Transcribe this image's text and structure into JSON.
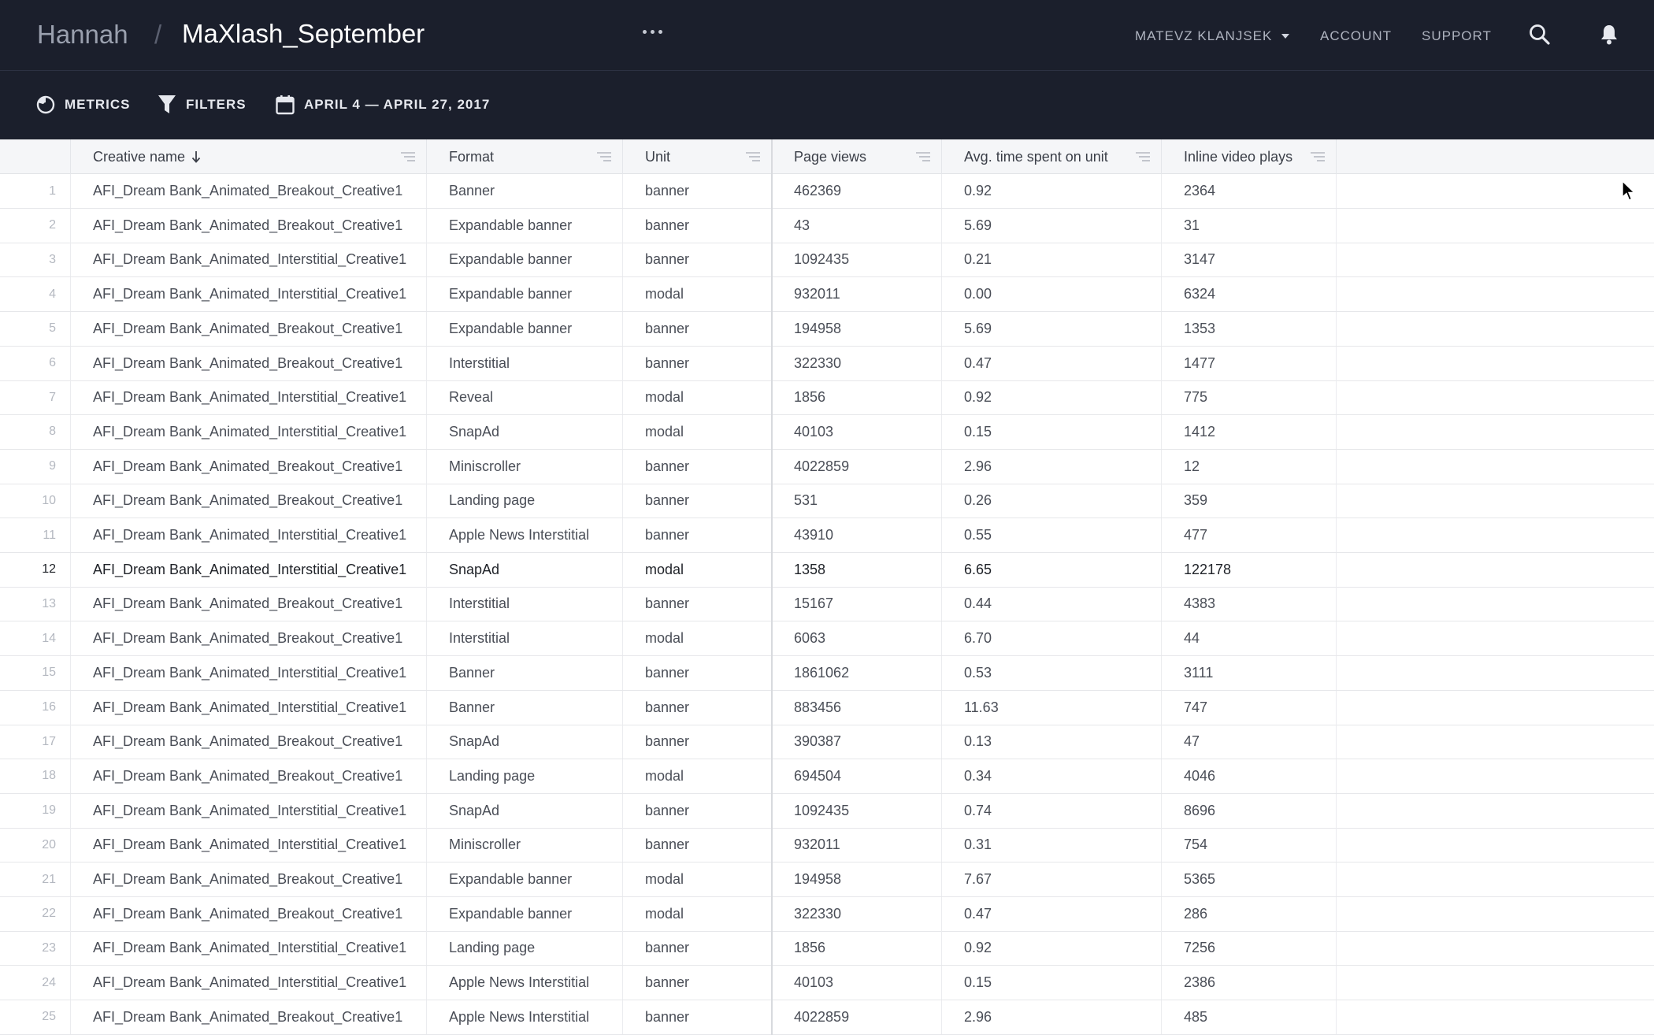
{
  "header": {
    "breadcrumb_root": "Hannah",
    "breadcrumb_separator": "/",
    "breadcrumb_current": "MaXlash_September",
    "user_name": "MATEVZ KLANJSEK",
    "account_label": "ACCOUNT",
    "support_label": "SUPPORT",
    "more_icon": "ellipsis-icon",
    "search_icon": "search-icon",
    "notification_icon": "bell-icon"
  },
  "toolbar": {
    "metrics_label": "METRICS",
    "filters_label": "FILTERS",
    "date_range_label": "APRIL 4 — APRIL 27, 2017"
  },
  "table": {
    "columns": [
      {
        "label": "Creative name",
        "sorted": "descending"
      },
      {
        "label": "Format"
      },
      {
        "label": "Unit"
      },
      {
        "label": "Page views"
      },
      {
        "label": "Avg. time spent on unit"
      },
      {
        "label": "Inline video plays"
      }
    ],
    "highlighted_row": 12,
    "rows": [
      {
        "index": "1",
        "creative": "AFI_Dream Bank_Animated_Breakout_Creative1",
        "format": "Banner",
        "unit": "banner",
        "page_views": "462369",
        "avg_time": "0.92",
        "video_plays": "2364"
      },
      {
        "index": "2",
        "creative": "AFI_Dream Bank_Animated_Breakout_Creative1",
        "format": "Expandable banner",
        "unit": "banner",
        "page_views": "43",
        "avg_time": "5.69",
        "video_plays": "31"
      },
      {
        "index": "3",
        "creative": "AFI_Dream Bank_Animated_Interstitial_Creative1",
        "format": "Expandable banner",
        "unit": "banner",
        "page_views": "1092435",
        "avg_time": "0.21",
        "video_plays": "3147"
      },
      {
        "index": "4",
        "creative": "AFI_Dream Bank_Animated_Interstitial_Creative1",
        "format": "Expandable banner",
        "unit": "modal",
        "page_views": "932011",
        "avg_time": "0.00",
        "video_plays": "6324"
      },
      {
        "index": "5",
        "creative": "AFI_Dream Bank_Animated_Breakout_Creative1",
        "format": "Expandable banner",
        "unit": "banner",
        "page_views": "194958",
        "avg_time": "5.69",
        "video_plays": "1353"
      },
      {
        "index": "6",
        "creative": "AFI_Dream Bank_Animated_Breakout_Creative1",
        "format": "Interstitial",
        "unit": "banner",
        "page_views": "322330",
        "avg_time": "0.47",
        "video_plays": "1477"
      },
      {
        "index": "7",
        "creative": "AFI_Dream Bank_Animated_Interstitial_Creative1",
        "format": "Reveal",
        "unit": "modal",
        "page_views": "1856",
        "avg_time": "0.92",
        "video_plays": "775"
      },
      {
        "index": "8",
        "creative": "AFI_Dream Bank_Animated_Interstitial_Creative1",
        "format": "SnapAd",
        "unit": "modal",
        "page_views": "40103",
        "avg_time": "0.15",
        "video_plays": "1412"
      },
      {
        "index": "9",
        "creative": "AFI_Dream Bank_Animated_Breakout_Creative1",
        "format": "Miniscroller",
        "unit": "banner",
        "page_views": "4022859",
        "avg_time": "2.96",
        "video_plays": "12"
      },
      {
        "index": "10",
        "creative": "AFI_Dream Bank_Animated_Breakout_Creative1",
        "format": "Landing page",
        "unit": "banner",
        "page_views": "531",
        "avg_time": "0.26",
        "video_plays": "359"
      },
      {
        "index": "11",
        "creative": "AFI_Dream Bank_Animated_Interstitial_Creative1",
        "format": "Apple News Interstitial",
        "unit": "banner",
        "page_views": "43910",
        "avg_time": "0.55",
        "video_plays": "477"
      },
      {
        "index": "12",
        "creative": "AFI_Dream Bank_Animated_Interstitial_Creative1",
        "format": "SnapAd",
        "unit": "modal",
        "page_views": "1358",
        "avg_time": "6.65",
        "video_plays": "122178"
      },
      {
        "index": "13",
        "creative": "AFI_Dream Bank_Animated_Breakout_Creative1",
        "format": "Interstitial",
        "unit": "banner",
        "page_views": "15167",
        "avg_time": "0.44",
        "video_plays": "4383"
      },
      {
        "index": "14",
        "creative": "AFI_Dream Bank_Animated_Breakout_Creative1",
        "format": "Interstitial",
        "unit": "modal",
        "page_views": "6063",
        "avg_time": "6.70",
        "video_plays": "44"
      },
      {
        "index": "15",
        "creative": "AFI_Dream Bank_Animated_Interstitial_Creative1",
        "format": "Banner",
        "unit": "banner",
        "page_views": "1861062",
        "avg_time": "0.53",
        "video_plays": "3111"
      },
      {
        "index": "16",
        "creative": "AFI_Dream Bank_Animated_Interstitial_Creative1",
        "format": "Banner",
        "unit": "banner",
        "page_views": "883456",
        "avg_time": "11.63",
        "video_plays": "747"
      },
      {
        "index": "17",
        "creative": "AFI_Dream Bank_Animated_Breakout_Creative1",
        "format": "SnapAd",
        "unit": "banner",
        "page_views": "390387",
        "avg_time": "0.13",
        "video_plays": "47"
      },
      {
        "index": "18",
        "creative": "AFI_Dream Bank_Animated_Breakout_Creative1",
        "format": "Landing page",
        "unit": "modal",
        "page_views": "694504",
        "avg_time": "0.34",
        "video_plays": "4046"
      },
      {
        "index": "19",
        "creative": "AFI_Dream Bank_Animated_Interstitial_Creative1",
        "format": "SnapAd",
        "unit": "banner",
        "page_views": "1092435",
        "avg_time": "0.74",
        "video_plays": "8696"
      },
      {
        "index": "20",
        "creative": "AFI_Dream Bank_Animated_Interstitial_Creative1",
        "format": "Miniscroller",
        "unit": "banner",
        "page_views": "932011",
        "avg_time": "0.31",
        "video_plays": "754"
      },
      {
        "index": "21",
        "creative": "AFI_Dream Bank_Animated_Breakout_Creative1",
        "format": "Expandable banner",
        "unit": "modal",
        "page_views": "194958",
        "avg_time": "7.67",
        "video_plays": "5365"
      },
      {
        "index": "22",
        "creative": "AFI_Dream Bank_Animated_Breakout_Creative1",
        "format": "Expandable banner",
        "unit": "modal",
        "page_views": "322330",
        "avg_time": "0.47",
        "video_plays": "286"
      },
      {
        "index": "23",
        "creative": "AFI_Dream Bank_Animated_Interstitial_Creative1",
        "format": "Landing page",
        "unit": "banner",
        "page_views": "1856",
        "avg_time": "0.92",
        "video_plays": "7256"
      },
      {
        "index": "24",
        "creative": "AFI_Dream Bank_Animated_Interstitial_Creative1",
        "format": "Apple News Interstitial",
        "unit": "banner",
        "page_views": "40103",
        "avg_time": "0.15",
        "video_plays": "2386"
      },
      {
        "index": "25",
        "creative": "AFI_Dream Bank_Animated_Breakout_Creative1",
        "format": "Apple News Interstitial",
        "unit": "banner",
        "page_views": "4022859",
        "avg_time": "2.96",
        "video_plays": "485"
      }
    ]
  },
  "colors": {
    "header_bg": "#1b1f2c",
    "grid_header_bg": "#f5f6f8",
    "text_primary": "#4a4e57",
    "row_index": "#b4b8c0"
  }
}
